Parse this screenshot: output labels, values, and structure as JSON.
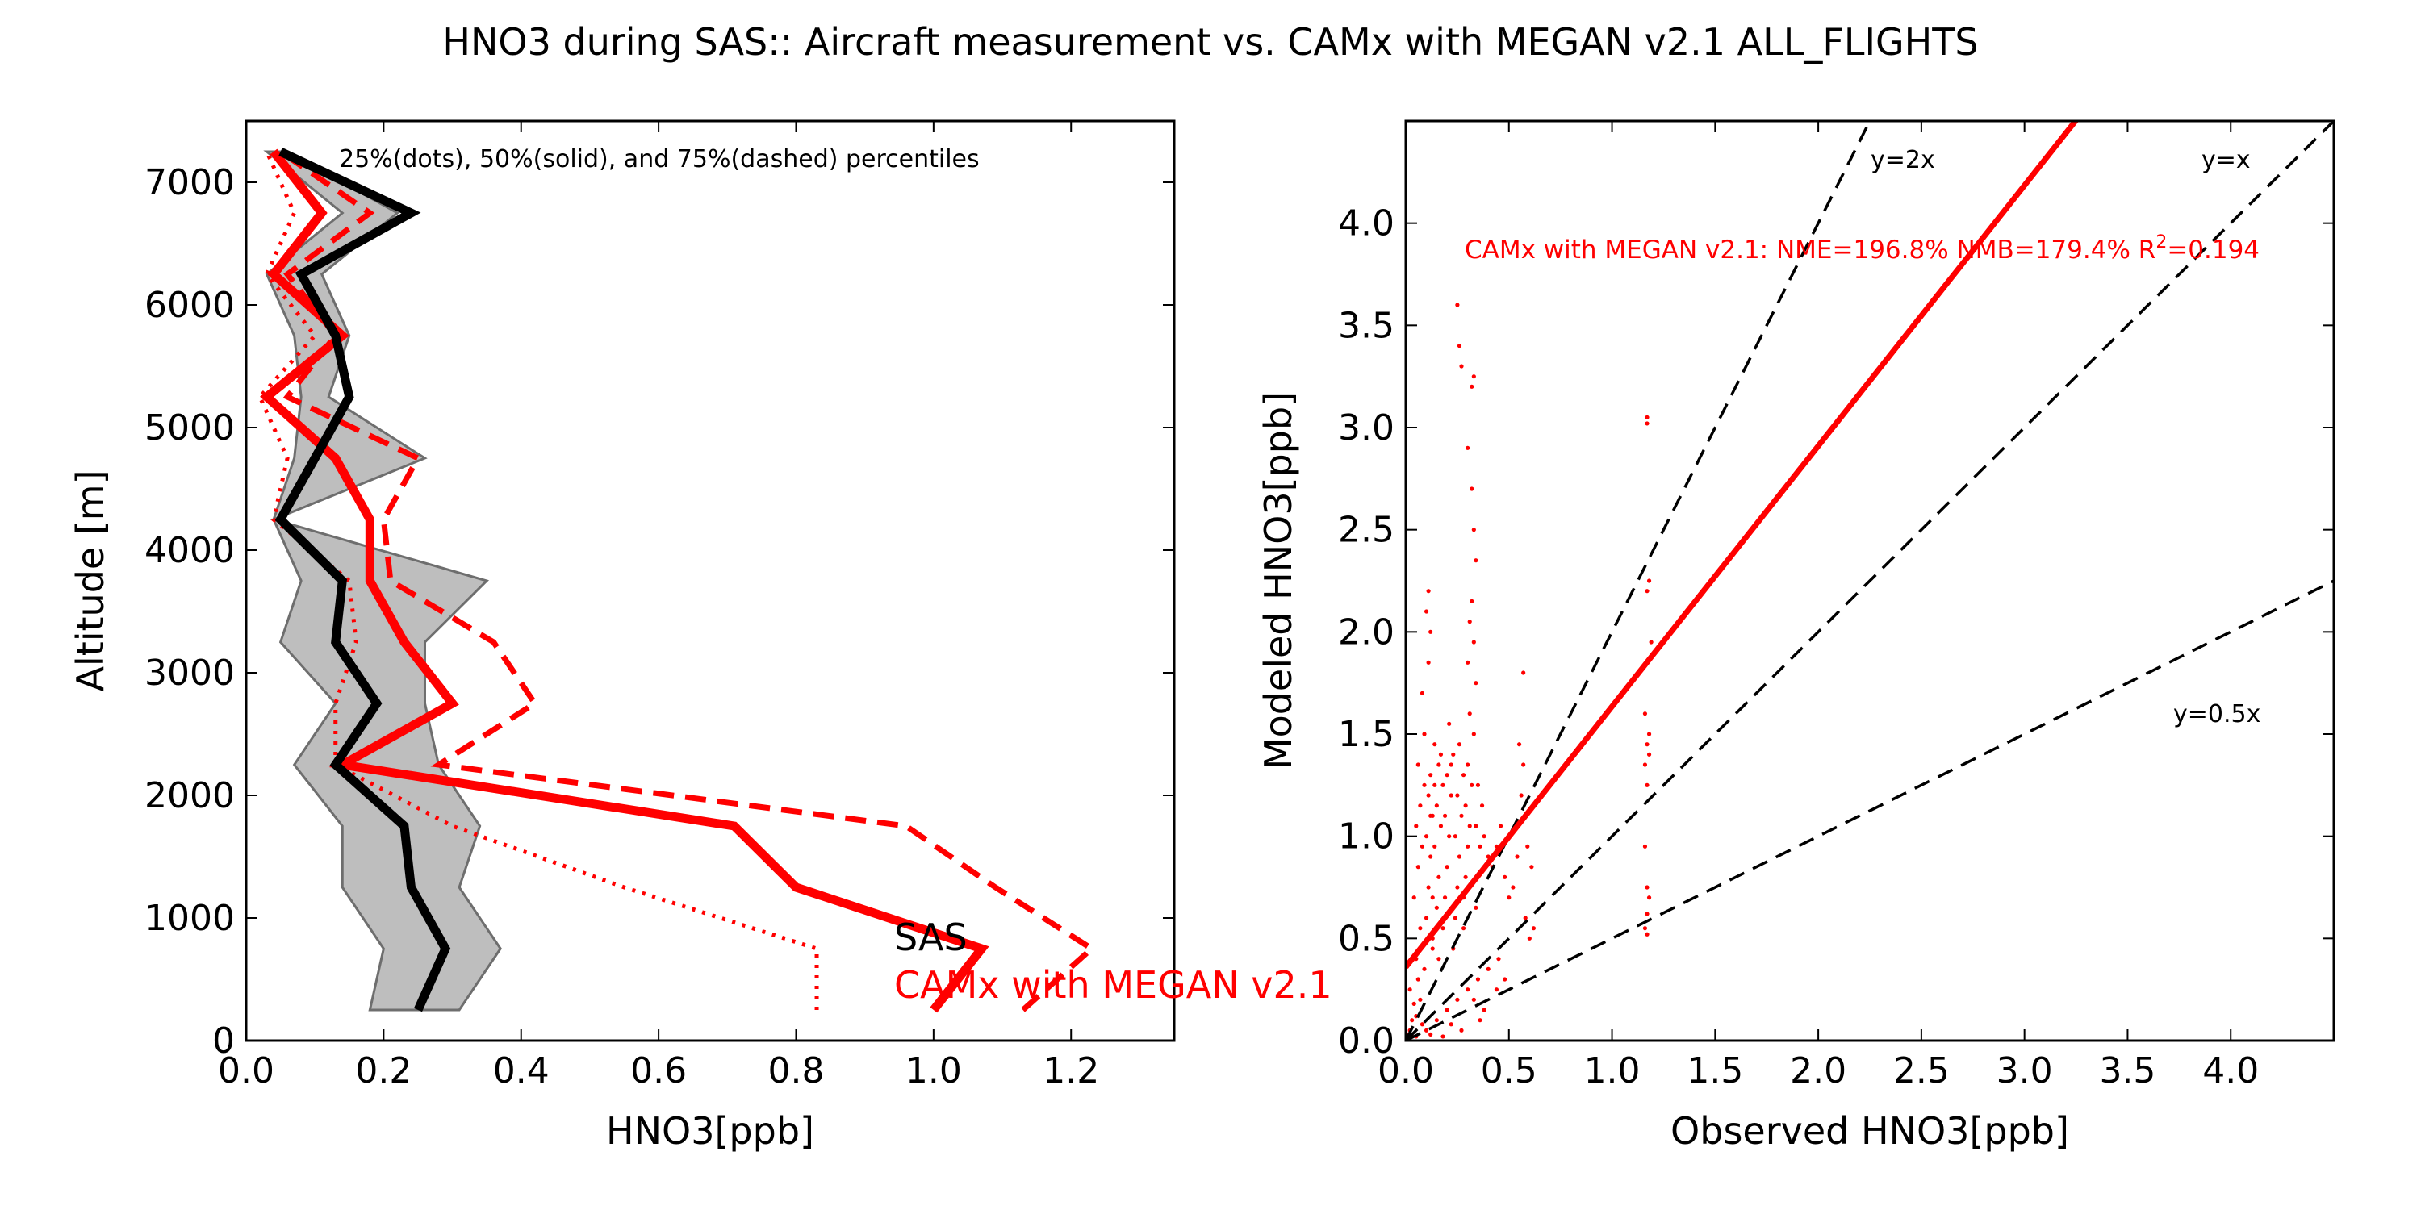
{
  "title": "HNO3 during SAS:: Aircraft measurement vs. CAMx with MEGAN v2.1 ALL_FLIGHTS",
  "colors": {
    "observed": "#000000",
    "model": "#ff0000",
    "band": "#bebebe",
    "band_edge": "#6e6e6e"
  },
  "chart_data": [
    {
      "type": "line",
      "panel": "vertical-profile",
      "xlabel": "HNO3[ppb]",
      "ylabel": "Altitude [m]",
      "xlim": [
        0.0,
        1.35
      ],
      "ylim": [
        0,
        7500
      ],
      "xticks": [
        "0.0",
        "0.2",
        "0.4",
        "0.6",
        "0.8",
        "1.0",
        "1.2"
      ],
      "xtick_values": [
        0.0,
        0.2,
        0.4,
        0.6,
        0.8,
        1.0,
        1.2
      ],
      "yticks": [
        "0",
        "1000",
        "2000",
        "3000",
        "4000",
        "5000",
        "6000",
        "7000"
      ],
      "ytick_values": [
        0,
        1000,
        2000,
        3000,
        4000,
        5000,
        6000,
        7000
      ],
      "annotation": "25%(dots), 50%(solid), and 75%(dashed) percentiles",
      "legend": [
        "SAS",
        "CAMx with MEGAN v2.1"
      ],
      "altitudes": [
        250,
        750,
        1250,
        1750,
        2250,
        2750,
        3250,
        3750,
        4250,
        4750,
        5250,
        5750,
        6250,
        6750,
        7250
      ],
      "series": [
        {
          "name": "SAS",
          "stat": "median",
          "values": [
            0.25,
            0.29,
            0.24,
            0.23,
            0.13,
            0.19,
            0.13,
            0.14,
            0.05,
            0.1,
            0.15,
            0.13,
            0.08,
            0.24,
            0.05
          ]
        },
        {
          "stat": "p25",
          "values": [
            0.18,
            0.2,
            0.14,
            0.14,
            0.07,
            0.13,
            0.05,
            0.08,
            0.04,
            0.07,
            0.08,
            0.07,
            0.03,
            0.14,
            0.03
          ]
        },
        {
          "stat": "p75",
          "values": [
            0.31,
            0.37,
            0.31,
            0.34,
            0.28,
            0.26,
            0.26,
            0.35,
            0.04,
            0.26,
            0.12,
            0.15,
            0.11,
            0.22,
            0.06
          ]
        },
        {
          "name": "CAMx with MEGAN v2.1",
          "stat": "median",
          "values": [
            1.0,
            1.07,
            0.8,
            0.71,
            0.14,
            0.3,
            0.23,
            0.18,
            0.18,
            0.13,
            0.03,
            0.14,
            0.04,
            0.11,
            0.04
          ]
        },
        {
          "stat": "p25",
          "values": [
            0.83,
            0.83,
            0.55,
            0.3,
            0.13,
            0.13,
            0.16,
            0.15,
            0.04,
            0.06,
            0.02,
            0.1,
            0.03,
            0.07,
            0.03
          ]
        },
        {
          "stat": "p75",
          "values": [
            1.13,
            1.23,
            1.09,
            0.96,
            0.28,
            0.42,
            0.36,
            0.21,
            0.2,
            0.25,
            0.06,
            0.13,
            0.06,
            0.18,
            0.05
          ]
        }
      ]
    },
    {
      "type": "scatter",
      "panel": "model-vs-observation",
      "xlabel": "Observed HNO3[ppb]",
      "ylabel": "Modeled HNO3[ppb]",
      "xlim": [
        0.0,
        4.5
      ],
      "ylim": [
        0.0,
        4.5
      ],
      "xticks": [
        "0.0",
        "0.5",
        "1.0",
        "1.5",
        "2.0",
        "2.5",
        "3.0",
        "3.5",
        "4.0"
      ],
      "xtick_values": [
        0.0,
        0.5,
        1.0,
        1.5,
        2.0,
        2.5,
        3.0,
        3.5,
        4.0
      ],
      "yticks": [
        "0.0",
        "0.5",
        "1.0",
        "1.5",
        "2.0",
        "2.5",
        "3.0",
        "3.5",
        "4.0"
      ],
      "ytick_values": [
        0.0,
        0.5,
        1.0,
        1.5,
        2.0,
        2.5,
        3.0,
        3.5,
        4.0
      ],
      "stats_text": "CAMx with MEGAN v2.1: NME=196.8% NMB=179.4% R",
      "stats_sup": "2",
      "stats_tail": "=0.194",
      "regression": {
        "slope": 1.275,
        "intercept": 0.36
      },
      "reference_lines": [
        {
          "label": "y=2x",
          "slope": 2.0
        },
        {
          "label": "y=x",
          "slope": 1.0
        },
        {
          "label": "y=0.5x",
          "slope": 0.5
        }
      ],
      "points": [
        [
          0.01,
          0.03
        ],
        [
          0.02,
          0.05
        ],
        [
          0.03,
          0.1
        ],
        [
          0.04,
          0.18
        ],
        [
          0.05,
          0.12
        ],
        [
          0.02,
          0.25
        ],
        [
          0.06,
          0.3
        ],
        [
          0.03,
          0.02
        ],
        [
          0.08,
          0.08
        ],
        [
          0.05,
          0.4
        ],
        [
          0.07,
          0.55
        ],
        [
          0.04,
          0.7
        ],
        [
          0.06,
          0.85
        ],
        [
          0.08,
          0.95
        ],
        [
          0.05,
          1.05
        ],
        [
          0.07,
          1.15
        ],
        [
          0.09,
          1.25
        ],
        [
          0.06,
          1.35
        ],
        [
          0.1,
          0.6
        ],
        [
          0.11,
          0.75
        ],
        [
          0.12,
          0.9
        ],
        [
          0.1,
          1.0
        ],
        [
          0.13,
          1.1
        ],
        [
          0.11,
          1.2
        ],
        [
          0.12,
          1.3
        ],
        [
          0.14,
          1.45
        ],
        [
          0.13,
          0.5
        ],
        [
          0.15,
          0.65
        ],
        [
          0.16,
          0.8
        ],
        [
          0.14,
          0.95
        ],
        [
          0.17,
          1.05
        ],
        [
          0.15,
          1.15
        ],
        [
          0.18,
          1.25
        ],
        [
          0.16,
          1.35
        ],
        [
          0.19,
          0.7
        ],
        [
          0.2,
          0.85
        ],
        [
          0.21,
          1.0
        ],
        [
          0.19,
          1.1
        ],
        [
          0.22,
          1.2
        ],
        [
          0.2,
          1.3
        ],
        [
          0.23,
          1.4
        ],
        [
          0.21,
          1.55
        ],
        [
          0.24,
          0.6
        ],
        [
          0.25,
          0.75
        ],
        [
          0.26,
          0.9
        ],
        [
          0.24,
          1.0
        ],
        [
          0.27,
          1.1
        ],
        [
          0.25,
          1.2
        ],
        [
          0.28,
          1.3
        ],
        [
          0.26,
          1.45
        ],
        [
          0.29,
          0.8
        ],
        [
          0.3,
          0.95
        ],
        [
          0.31,
          1.05
        ],
        [
          0.29,
          1.15
        ],
        [
          0.32,
          1.25
        ],
        [
          0.3,
          1.35
        ],
        [
          0.33,
          1.5
        ],
        [
          0.31,
          1.6
        ],
        [
          0.34,
          0.65
        ],
        [
          0.35,
          0.8
        ],
        [
          0.36,
          0.95
        ],
        [
          0.34,
          1.05
        ],
        [
          0.37,
          1.15
        ],
        [
          0.35,
          1.25
        ],
        [
          0.38,
          1.0
        ],
        [
          0.4,
          0.9
        ],
        [
          0.42,
          0.85
        ],
        [
          0.44,
          0.95
        ],
        [
          0.46,
          1.05
        ],
        [
          0.48,
          0.8
        ],
        [
          0.5,
          0.7
        ],
        [
          0.52,
          0.75
        ],
        [
          0.54,
          0.9
        ],
        [
          0.56,
          1.2
        ],
        [
          0.55,
          1.45
        ],
        [
          0.57,
          1.8
        ],
        [
          0.58,
          0.6
        ],
        [
          0.6,
          0.5
        ],
        [
          0.62,
          0.55
        ],
        [
          0.45,
          0.4
        ],
        [
          0.4,
          0.35
        ],
        [
          0.35,
          0.3
        ],
        [
          0.3,
          0.25
        ],
        [
          0.25,
          0.2
        ],
        [
          0.2,
          0.15
        ],
        [
          0.15,
          0.1
        ],
        [
          0.1,
          0.05
        ],
        [
          0.33,
          0.2
        ],
        [
          0.36,
          0.1
        ],
        [
          0.38,
          0.15
        ],
        [
          0.27,
          0.05
        ],
        [
          0.22,
          0.08
        ],
        [
          0.18,
          0.02
        ],
        [
          0.12,
          0.03
        ],
        [
          0.44,
          0.25
        ],
        [
          0.48,
          0.3
        ],
        [
          0.09,
          1.5
        ],
        [
          0.08,
          1.7
        ],
        [
          0.11,
          1.85
        ],
        [
          0.12,
          2.0
        ],
        [
          0.1,
          2.1
        ],
        [
          0.11,
          2.2
        ],
        [
          0.25,
          3.6
        ],
        [
          0.26,
          3.4
        ],
        [
          0.27,
          3.3
        ],
        [
          0.32,
          3.2
        ],
        [
          0.33,
          3.25
        ],
        [
          0.3,
          2.9
        ],
        [
          0.32,
          2.7
        ],
        [
          0.33,
          2.5
        ],
        [
          0.34,
          2.35
        ],
        [
          0.32,
          2.15
        ],
        [
          0.31,
          2.05
        ],
        [
          0.33,
          1.95
        ],
        [
          0.3,
          1.85
        ],
        [
          0.34,
          1.75
        ],
        [
          1.17,
          3.05
        ],
        [
          1.17,
          3.02
        ],
        [
          1.18,
          2.25
        ],
        [
          1.17,
          2.2
        ],
        [
          1.19,
          1.95
        ],
        [
          1.16,
          1.6
        ],
        [
          1.18,
          1.5
        ],
        [
          1.17,
          1.45
        ],
        [
          1.18,
          1.4
        ],
        [
          1.16,
          1.35
        ],
        [
          1.17,
          1.25
        ],
        [
          1.16,
          0.95
        ],
        [
          1.17,
          0.75
        ],
        [
          1.18,
          0.7
        ],
        [
          1.17,
          0.62
        ],
        [
          1.16,
          0.55
        ],
        [
          1.17,
          0.52
        ],
        [
          0.61,
          0.85
        ],
        [
          0.59,
          0.95
        ],
        [
          0.57,
          1.35
        ],
        [
          0.05,
          0.02
        ],
        [
          0.07,
          0.2
        ],
        [
          0.09,
          0.35
        ],
        [
          0.13,
          0.45
        ],
        [
          0.18,
          0.55
        ],
        [
          0.23,
          0.45
        ],
        [
          0.28,
          0.55
        ],
        [
          0.28,
          0.7
        ],
        [
          0.22,
          1.35
        ],
        [
          0.17,
          1.4
        ],
        [
          0.14,
          1.25
        ],
        [
          0.12,
          1.1
        ],
        [
          0.13,
          0.7
        ],
        [
          0.16,
          0.4
        ]
      ]
    }
  ]
}
